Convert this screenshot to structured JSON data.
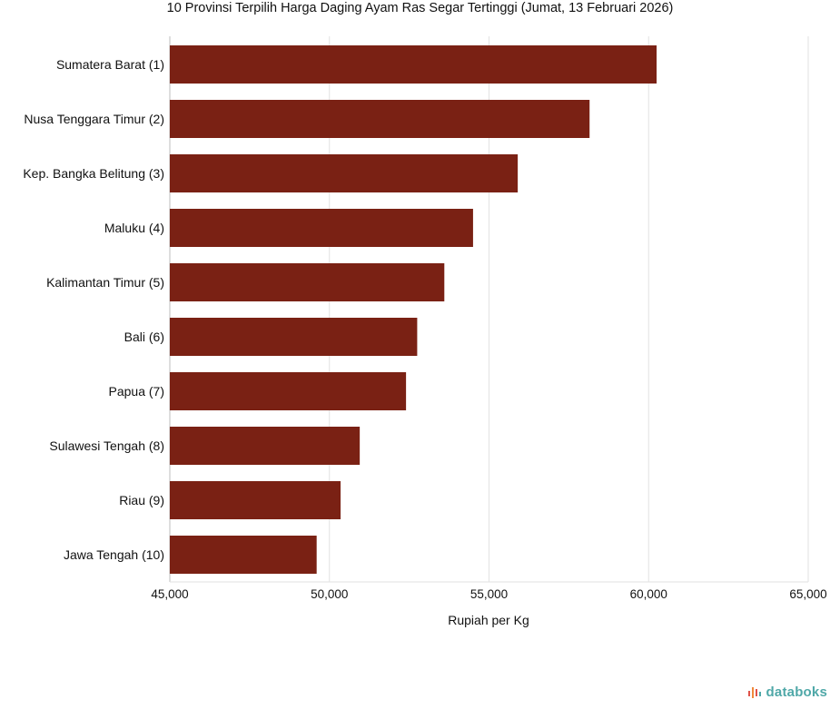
{
  "chart_data": {
    "type": "bar",
    "orientation": "horizontal",
    "title": "10 Provinsi Terpilih Harga Daging Ayam Ras Segar Tertinggi (Jumat, 13 Februari 2026)",
    "xlabel": "Rupiah per Kg",
    "ylabel": "",
    "categories": [
      "Sumatera Barat (1)",
      "Nusa Tenggara Timur (2)",
      "Kep. Bangka Belitung (3)",
      "Maluku (4)",
      "Kalimantan Timur (5)",
      "Bali (6)",
      "Papua (7)",
      "Sulawesi Tengah (8)",
      "Riau (9)",
      "Jawa Tengah (10)"
    ],
    "values": [
      60250,
      58150,
      55900,
      54500,
      53600,
      52750,
      52400,
      50950,
      50350,
      49600
    ],
    "xlim": [
      45000,
      65000
    ],
    "xticks": [
      45000,
      50000,
      55000,
      60000,
      65000
    ],
    "xtick_labels": [
      "45,000",
      "50,000",
      "55,000",
      "60,000",
      "65,000"
    ],
    "grid": true,
    "bar_color": "#7a2114"
  },
  "brand": {
    "name": "databoks",
    "icon": "databoks-logo-icon"
  }
}
